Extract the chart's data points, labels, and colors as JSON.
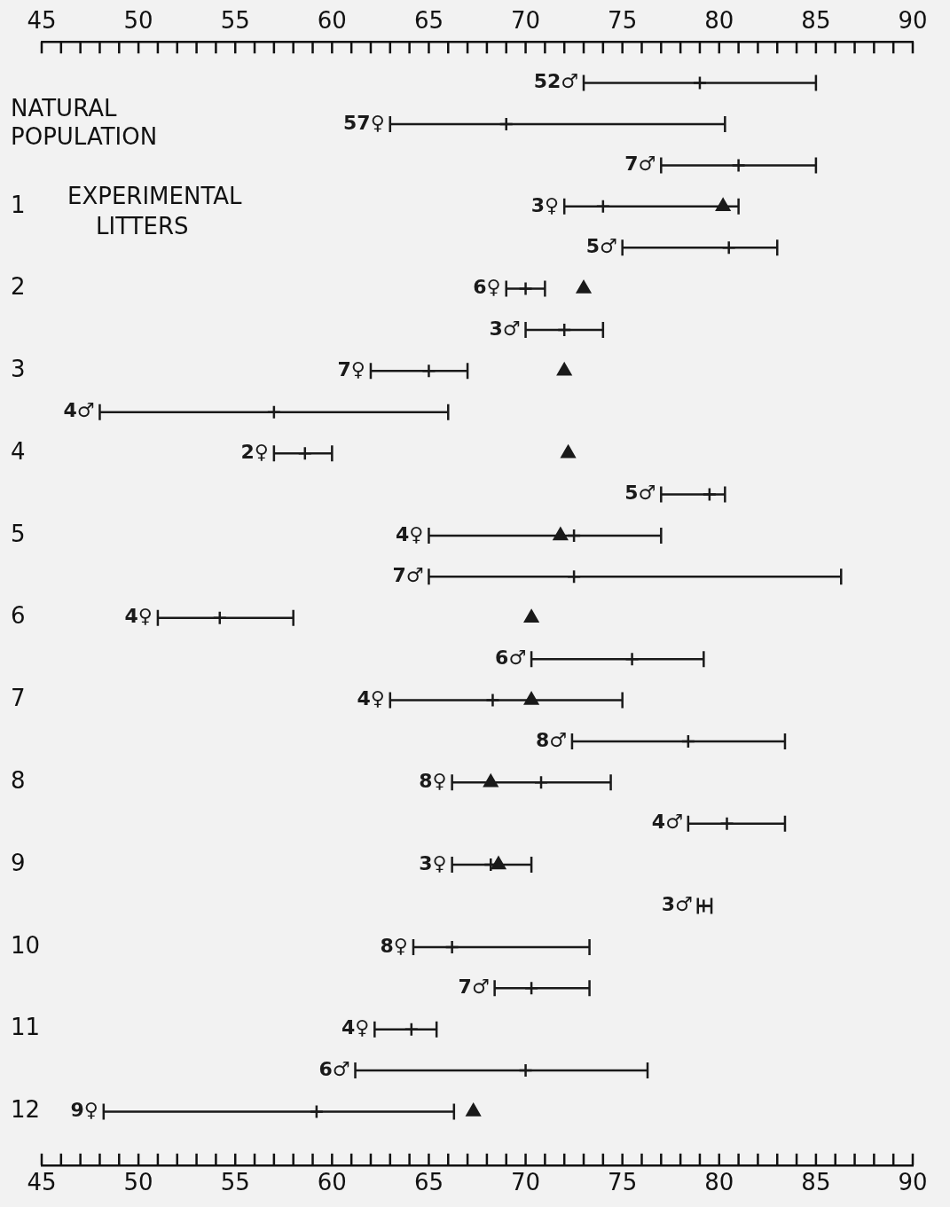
{
  "chart_data": {
    "type": "scatter",
    "orientation": "horizontal",
    "categories": [
      null,
      "NATURAL POPULATION",
      null,
      "1",
      null,
      "2",
      null,
      "3",
      null,
      "4",
      null,
      "5",
      null,
      "6",
      null,
      "7",
      null,
      "8",
      null,
      "9",
      null,
      "10",
      null,
      "11",
      null,
      "12"
    ],
    "annotations": [
      "52♂",
      "57♀",
      "7♂",
      "3♀",
      "5♂",
      "6♀",
      "3♂",
      "7♀",
      "4♂",
      "2♀",
      "5♂",
      "4♀",
      "7♂",
      "4♀",
      "6♂",
      "4♀",
      "8♂",
      "8♀",
      "4♂",
      "3♀",
      "3♂",
      "8♀",
      "7♂",
      "4♀",
      "6♂",
      "9♀",
      "EXPERIMENTAL LITTERS"
    ],
    "marker": "cross",
    "series": [
      {
        "color": "#1a1a1a",
        "values": [
          79,
          null,
          81,
          null,
          80.5,
          null,
          72,
          null,
          57,
          null,
          79.5,
          null,
          72.5,
          null,
          75.5,
          null,
          78.4,
          null,
          80.4,
          null,
          79.2,
          null,
          70.3,
          null,
          70,
          null
        ],
        "errors": [
          [
            73,
            85
          ],
          null,
          [
            77,
            85
          ],
          null,
          [
            75,
            83
          ],
          null,
          [
            70,
            74
          ],
          null,
          [
            48,
            66
          ],
          null,
          [
            77,
            80.3
          ],
          null,
          [
            65,
            86.3
          ],
          null,
          [
            70.3,
            79.2
          ],
          null,
          [
            72.4,
            83.4
          ],
          null,
          [
            78.4,
            83.4
          ],
          null,
          [
            78.9,
            79.6
          ],
          null,
          [
            68.4,
            73.3
          ],
          null,
          [
            61.2,
            76.3
          ],
          null
        ]
      },
      {
        "color": "#1a1a1a",
        "values": [
          null,
          69,
          null,
          74,
          null,
          70,
          null,
          65,
          null,
          58.6,
          null,
          72.5,
          null,
          54.2,
          null,
          68.3,
          null,
          70.8,
          null,
          68.2,
          null,
          66.2,
          null,
          64.1,
          null,
          59.2
        ],
        "errors": [
          null,
          [
            63,
            80.3
          ],
          null,
          [
            72,
            81
          ],
          null,
          [
            69,
            71
          ],
          null,
          [
            62,
            67
          ],
          null,
          [
            57,
            60
          ],
          null,
          [
            65,
            77
          ],
          null,
          [
            51,
            58
          ],
          null,
          [
            63,
            75
          ],
          null,
          [
            66.2,
            74.4
          ],
          null,
          [
            66.2,
            70.3
          ],
          null,
          [
            64.2,
            73.3
          ],
          null,
          [
            62.2,
            65.4
          ],
          null,
          [
            48.2,
            66.3
          ]
        ]
      },
      {
        "type": "scatter",
        "marker": "triangle",
        "color": "#1a1a1a",
        "values": [
          null,
          null,
          null,
          80.2,
          null,
          73,
          null,
          72,
          null,
          72.2,
          null,
          71.8,
          null,
          70.3,
          null,
          70.3,
          null,
          68.2,
          null,
          68.6,
          null,
          null,
          null,
          null,
          null,
          67.3
        ]
      }
    ],
    "xlim": [
      45,
      90
    ],
    "xticks": [
      45,
      {
        "value": 46,
        "label": null
      },
      {
        "value": 47,
        "label": null
      },
      {
        "value": 48,
        "label": null
      },
      {
        "value": 49,
        "label": null
      },
      50,
      {
        "value": 51,
        "label": null
      },
      {
        "value": 52,
        "label": null
      },
      {
        "value": 53,
        "label": null
      },
      {
        "value": 54,
        "label": null
      },
      55,
      {
        "value": 56,
        "label": null
      },
      {
        "value": 57,
        "label": null
      },
      {
        "value": 58,
        "label": null
      },
      {
        "value": 59,
        "label": null
      },
      60,
      {
        "value": 61,
        "label": null
      },
      {
        "value": 62,
        "label": null
      },
      {
        "value": 63,
        "label": null
      },
      {
        "value": 64,
        "label": null
      },
      65,
      {
        "value": 66,
        "label": null
      },
      {
        "value": 67,
        "label": null
      },
      {
        "value": 68,
        "label": null
      },
      {
        "value": 69,
        "label": null
      },
      70,
      {
        "value": 71,
        "label": null
      },
      {
        "value": 72,
        "label": null
      },
      {
        "value": 73,
        "label": null
      },
      {
        "value": 74,
        "label": null
      },
      75,
      {
        "value": 76,
        "label": null
      },
      {
        "value": 77,
        "label": null
      },
      {
        "value": 78,
        "label": null
      },
      {
        "value": 79,
        "label": null
      },
      80,
      {
        "value": 81,
        "label": null
      },
      {
        "value": 82,
        "label": null
      },
      {
        "value": 83,
        "label": null
      },
      {
        "value": 84,
        "label": null
      },
      85,
      {
        "value": 86,
        "label": null
      },
      {
        "value": 87,
        "label": null
      },
      {
        "value": 88,
        "label": null
      },
      {
        "value": 89,
        "label": null
      },
      90
    ],
    "x2lim": [
      45,
      90
    ],
    "x2ticks": [
      45,
      {
        "value": 46,
        "label": null
      },
      {
        "value": 47,
        "label": null
      },
      {
        "value": 48,
        "label": null
      },
      {
        "value": 49,
        "label": null
      },
      50,
      {
        "value": 51,
        "label": null
      },
      {
        "value": 52,
        "label": null
      },
      {
        "value": 53,
        "label": null
      },
      {
        "value": 54,
        "label": null
      },
      55,
      {
        "value": 56,
        "label": null
      },
      {
        "value": 57,
        "label": null
      },
      {
        "value": 58,
        "label": null
      },
      {
        "value": 59,
        "label": null
      },
      60,
      {
        "value": 61,
        "label": null
      },
      {
        "value": 62,
        "label": null
      },
      {
        "value": 63,
        "label": null
      },
      {
        "value": 64,
        "label": null
      },
      65,
      {
        "value": 66,
        "label": null
      },
      {
        "value": 67,
        "label": null
      },
      {
        "value": 68,
        "label": null
      },
      {
        "value": 69,
        "label": null
      },
      70,
      {
        "value": 71,
        "label": null
      },
      {
        "value": 72,
        "label": null
      },
      {
        "value": 73,
        "label": null
      },
      {
        "value": 74,
        "label": null
      },
      75,
      {
        "value": 76,
        "label": null
      },
      {
        "value": 77,
        "label": null
      },
      {
        "value": 78,
        "label": null
      },
      {
        "value": 79,
        "label": null
      },
      80,
      {
        "value": 81,
        "label": null
      },
      {
        "value": 82,
        "label": null
      },
      {
        "value": 83,
        "label": null
      },
      {
        "value": 84,
        "label": null
      },
      85,
      {
        "value": 86,
        "label": null
      },
      {
        "value": 87,
        "label": null
      },
      {
        "value": 88,
        "label": null
      },
      {
        "value": 89,
        "label": null
      },
      90
    ]
  }
}
